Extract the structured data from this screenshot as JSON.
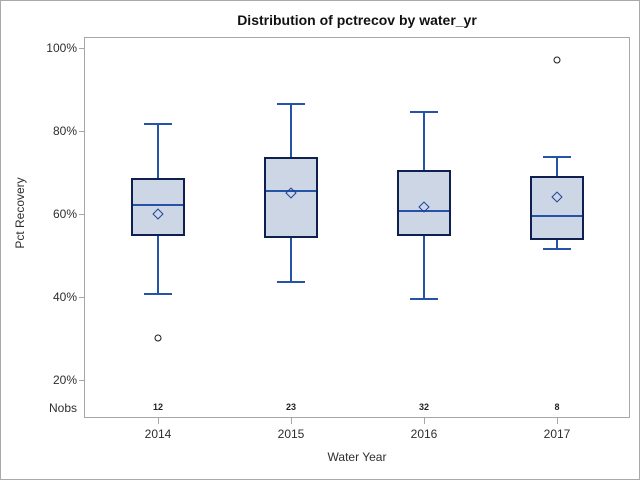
{
  "figure": {
    "title": "Distribution of pctrecov by water_yr",
    "x_axis_label": "Water Year",
    "y_axis_label": "Pct Recovery",
    "nobs_row_label": "Nobs"
  },
  "colors": {
    "box_fill": "#ccd6e4",
    "box_outline": "#0f2050",
    "line_blue": "#2553a6",
    "mean_diamond": "#1d3f9c",
    "outlier": "#1a1a1a",
    "axis_gray": "#a7a7a7",
    "text": "#2e2e2e"
  },
  "chart_data": {
    "type": "box",
    "title": "Distribution of pctrecov by water_yr",
    "xlabel": "Water Year",
    "ylabel": "Pct Recovery",
    "categories": [
      "2014",
      "2015",
      "2016",
      "2017"
    ],
    "y_axis": {
      "tick_values": [
        100,
        80,
        60,
        40,
        20
      ],
      "tick_labels": [
        "100%",
        "80%",
        "60%",
        "40%",
        "20%"
      ],
      "unit": "percent"
    },
    "nobs_label": "Nobs",
    "legend": "none",
    "grid": "off",
    "series": [
      {
        "category": "2014",
        "nobs": "12",
        "whisker_low": 40.5,
        "q1": 54.5,
        "median": 62,
        "mean": 60,
        "q3": 68.5,
        "whisker_high": 81.5,
        "outliers": [
          30
        ]
      },
      {
        "category": "2015",
        "nobs": "23",
        "whisker_low": 43.5,
        "q1": 54,
        "median": 65.5,
        "mean": 65,
        "q3": 73.5,
        "whisker_high": 86.5,
        "outliers": []
      },
      {
        "category": "2016",
        "nobs": "32",
        "whisker_low": 39.5,
        "q1": 54.5,
        "median": 60.5,
        "mean": 61.5,
        "q3": 70.5,
        "whisker_high": 84.5,
        "outliers": []
      },
      {
        "category": "2017",
        "nobs": "8",
        "whisker_low": 51.5,
        "q1": 53.5,
        "median": 59.5,
        "mean": 64,
        "q3": 69,
        "whisker_high": 73.5,
        "outliers": [
          97
        ]
      }
    ]
  }
}
